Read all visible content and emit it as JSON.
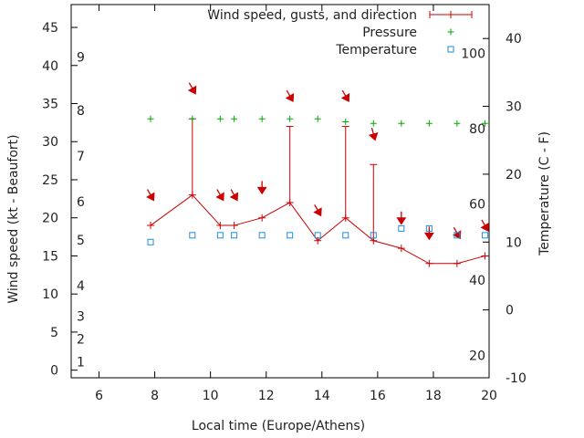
{
  "chart_data": {
    "type": "line",
    "xlabel": "Local time (Europe/Athens)",
    "ylabel_left": "Wind speed (kt - Beaufort)",
    "ylabel_right": "Temperature (C - F)",
    "xlim": [
      5,
      20
    ],
    "ylim_left": [
      -1,
      48
    ],
    "ylim_right": [
      -10,
      45
    ],
    "x_ticks": [
      6,
      8,
      10,
      12,
      14,
      16,
      18,
      20
    ],
    "y_left_ticks": [
      0,
      5,
      10,
      15,
      20,
      25,
      30,
      35,
      40,
      45
    ],
    "y_right_ticks": [
      -10,
      0,
      10,
      20,
      30,
      40
    ],
    "beaufort_scale": [
      {
        "label": "1",
        "kt": 1.1
      },
      {
        "label": "2",
        "kt": 4.1
      },
      {
        "label": "3",
        "kt": 7.1
      },
      {
        "label": "4",
        "kt": 11.1
      },
      {
        "label": "5",
        "kt": 17.1
      },
      {
        "label": "6",
        "kt": 22.1
      },
      {
        "label": "7",
        "kt": 28.1
      },
      {
        "label": "8",
        "kt": 34.1
      },
      {
        "label": "9",
        "kt": 41.1
      }
    ],
    "fahrenheit_scale": [
      {
        "label": "20",
        "c": -6.7
      },
      {
        "label": "40",
        "c": 4.4
      },
      {
        "label": "60",
        "c": 15.6
      },
      {
        "label": "80",
        "c": 26.7
      },
      {
        "label": "100",
        "c": 37.8
      }
    ],
    "grid": false,
    "legend_position": "top-right",
    "series": [
      {
        "name": "Wind speed, gusts, and direction",
        "color": "#cc0000",
        "x": [
          7.85,
          9.35,
          10.35,
          10.85,
          11.85,
          12.85,
          13.85,
          14.85,
          15.85,
          16.85,
          17.85,
          18.85,
          19.85
        ],
        "wind_kt": [
          19,
          23,
          19,
          19,
          20,
          22,
          17,
          20,
          17,
          16,
          14,
          14,
          15
        ],
        "gust_kt": [
          null,
          33,
          null,
          null,
          null,
          32,
          null,
          32,
          27,
          null,
          null,
          null,
          null
        ],
        "arrow_kt": [
          23,
          37,
          23,
          23,
          24,
          36,
          21,
          36,
          31,
          20,
          18,
          18,
          19
        ],
        "arrow_angle_deg": [
          60,
          60,
          60,
          60,
          90,
          60,
          60,
          60,
          75,
          90,
          90,
          60,
          60
        ]
      },
      {
        "name": "Pressure",
        "color": "#00aa00",
        "x": [
          7.85,
          9.35,
          10.35,
          10.85,
          11.85,
          12.85,
          13.85,
          14.85,
          15.85,
          16.85,
          17.85,
          18.85,
          19.85
        ],
        "y_kt": [
          33,
          33,
          33,
          33,
          33,
          33,
          33,
          32.6,
          32.4,
          32.4,
          32.4,
          32.4,
          32.4
        ]
      },
      {
        "name": "Temperature",
        "color": "#1f8fd8",
        "x": [
          7.85,
          9.35,
          10.35,
          10.85,
          11.85,
          12.85,
          13.85,
          14.85,
          15.85,
          16.85,
          17.85,
          18.85,
          19.85
        ],
        "temp_c": [
          10,
          11,
          11,
          11,
          11,
          11,
          11,
          11,
          11,
          12,
          12,
          11,
          11
        ]
      }
    ]
  }
}
